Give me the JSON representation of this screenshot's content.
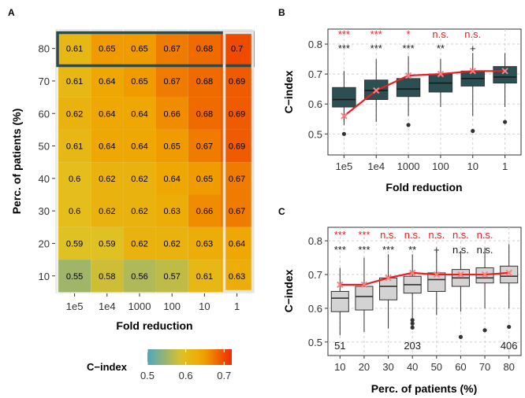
{
  "chart_data": [
    {
      "panel": "A",
      "type": "heatmap",
      "xlabel": "Fold reduction",
      "ylabel": "Perc. of patients (%)",
      "x_categories": [
        "1e5",
        "1e4",
        "1000",
        "100",
        "10",
        "1"
      ],
      "y_categories": [
        "80",
        "70",
        "60",
        "50",
        "40",
        "30",
        "20",
        "10"
      ],
      "values": [
        [
          0.61,
          0.65,
          0.65,
          0.67,
          0.68,
          0.7
        ],
        [
          0.61,
          0.64,
          0.65,
          0.67,
          0.68,
          0.69
        ],
        [
          0.62,
          0.64,
          0.64,
          0.66,
          0.68,
          0.69
        ],
        [
          0.61,
          0.64,
          0.64,
          0.65,
          0.67,
          0.69
        ],
        [
          0.6,
          0.62,
          0.62,
          0.64,
          0.65,
          0.67
        ],
        [
          0.6,
          0.62,
          0.62,
          0.63,
          0.66,
          0.67
        ],
        [
          0.59,
          0.59,
          0.62,
          0.62,
          0.63,
          0.64
        ],
        [
          0.55,
          0.58,
          0.56,
          0.57,
          0.61,
          0.63
        ]
      ],
      "highlighted_row": "80",
      "highlighted_column": "1",
      "legend": {
        "title": "C−index",
        "ticks": [
          "0.5",
          "0.6",
          "0.7"
        ],
        "range": [
          0.5,
          0.72
        ],
        "colors": [
          "#4ea7c0",
          "#e3c220",
          "#f0a400",
          "#ee2a00"
        ]
      }
    },
    {
      "panel": "B",
      "type": "box",
      "xlabel": "Fold reduction",
      "ylabel": "C−index",
      "categories": [
        "1e5",
        "1e4",
        "1000",
        "100",
        "10",
        "1"
      ],
      "ylim": [
        0.43,
        0.85
      ],
      "yticks": [
        "0.5",
        "0.6",
        "0.7",
        "0.8"
      ],
      "box_color": "#2b4f52",
      "boxes": [
        {
          "whisker_low": 0.53,
          "q1": 0.59,
          "median": 0.615,
          "q3": 0.655,
          "whisker_high": 0.71,
          "outliers": [
            0.5
          ]
        },
        {
          "whisker_low": 0.54,
          "q1": 0.615,
          "median": 0.645,
          "q3": 0.68,
          "whisker_high": 0.75,
          "outliers": []
        },
        {
          "whisker_low": 0.56,
          "q1": 0.625,
          "median": 0.65,
          "q3": 0.685,
          "whisker_high": 0.76,
          "outliers": [
            0.53
          ]
        },
        {
          "whisker_low": 0.59,
          "q1": 0.64,
          "median": 0.67,
          "q3": 0.7,
          "whisker_high": 0.75,
          "outliers": []
        },
        {
          "whisker_low": 0.56,
          "q1": 0.66,
          "median": 0.685,
          "q3": 0.71,
          "whisker_high": 0.77,
          "outliers": [
            0.51
          ]
        },
        {
          "whisker_low": 0.59,
          "q1": 0.67,
          "median": 0.69,
          "q3": 0.725,
          "whisker_high": 0.77,
          "outliers": [
            0.54
          ]
        }
      ],
      "mean_line": [
        0.56,
        0.645,
        0.695,
        0.7,
        0.71,
        0.71
      ],
      "line_color": "#ee1c24",
      "significance_red": [
        "***",
        "***",
        "*",
        "n.s.",
        "n.s.",
        ""
      ],
      "significance_black": [
        "***",
        "***",
        "***",
        "**",
        "+",
        ""
      ]
    },
    {
      "panel": "C",
      "type": "box",
      "xlabel": "Perc. of patients (%)",
      "ylabel": "C−index",
      "categories": [
        "10",
        "20",
        "30",
        "40",
        "50",
        "60",
        "70",
        "80"
      ],
      "ylim": [
        0.46,
        0.84
      ],
      "yticks": [
        "0.5",
        "0.6",
        "0.7",
        "0.8"
      ],
      "box_color": "#d3d3d3",
      "boxes": [
        {
          "whisker_low": 0.52,
          "q1": 0.59,
          "median": 0.63,
          "q3": 0.65,
          "whisker_high": 0.72,
          "outliers": []
        },
        {
          "whisker_low": 0.53,
          "q1": 0.595,
          "median": 0.635,
          "q3": 0.665,
          "whisker_high": 0.75,
          "outliers": []
        },
        {
          "whisker_low": 0.54,
          "q1": 0.625,
          "median": 0.665,
          "q3": 0.69,
          "whisker_high": 0.76,
          "outliers": []
        },
        {
          "whisker_low": 0.57,
          "q1": 0.645,
          "median": 0.67,
          "q3": 0.695,
          "whisker_high": 0.76,
          "outliers": [
            0.565,
            0.555,
            0.543
          ]
        },
        {
          "whisker_low": 0.58,
          "q1": 0.65,
          "median": 0.685,
          "q3": 0.705,
          "whisker_high": 0.77,
          "outliers": []
        },
        {
          "whisker_low": 0.59,
          "q1": 0.665,
          "median": 0.69,
          "q3": 0.715,
          "whisker_high": 0.77,
          "outliers": [
            0.515
          ]
        },
        {
          "whisker_low": 0.6,
          "q1": 0.675,
          "median": 0.69,
          "q3": 0.72,
          "whisker_high": 0.78,
          "outliers": [
            0.535
          ]
        },
        {
          "whisker_low": 0.6,
          "q1": 0.675,
          "median": 0.695,
          "q3": 0.725,
          "whisker_high": 0.79,
          "outliers": [
            0.545
          ]
        }
      ],
      "mean_line": [
        0.67,
        0.67,
        0.69,
        0.705,
        0.7,
        0.7,
        0.7,
        0.705
      ],
      "line_color": "#ee1c24",
      "significance_red": [
        "***",
        "***",
        "n.s.",
        "n.s.",
        "n.s.",
        "n.s.",
        "n.s.",
        ""
      ],
      "significance_black": [
        "***",
        "***",
        "***",
        "**",
        "+",
        "n.s.",
        "n.s.",
        ""
      ],
      "sample_labels": [
        {
          "category": "10",
          "text": "51"
        },
        {
          "category": "40",
          "text": "203"
        },
        {
          "category": "80",
          "text": "406"
        }
      ]
    }
  ],
  "panel_labels": {
    "a": "A",
    "b": "B",
    "c": "C"
  }
}
